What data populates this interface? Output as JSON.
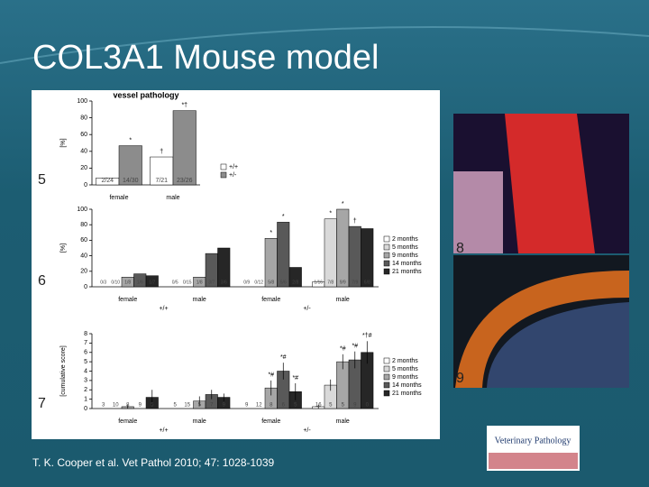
{
  "slide": {
    "title": "COL3A1 Mouse model",
    "citation": "T. K. Cooper et al. Vet Pathol 2010; 47: 1028-1039",
    "panel_labels": [
      "5",
      "6",
      "7",
      "8",
      "9"
    ],
    "logo": "Veterinary Pathology"
  },
  "chart_data": [
    {
      "type": "bar",
      "title": "vessel pathology",
      "y_label": "[%]",
      "categories": [
        "female",
        "male"
      ],
      "series": [
        {
          "name": "+/+",
          "color": "#ffffff",
          "values": [
            8.3,
            33.3
          ],
          "value_labels": [
            "2/24",
            "7/21"
          ]
        },
        {
          "name": "+/-",
          "color": "#8c8c8c",
          "values": [
            46.7,
            88.5
          ],
          "value_labels": [
            "14/30",
            "23/26"
          ]
        }
      ],
      "annotations": [
        {
          "text": "*",
          "category": 0,
          "series": 1
        },
        {
          "text": "†",
          "category": 1,
          "series": 0
        },
        {
          "text": "*†",
          "category": 1,
          "series": 1
        }
      ],
      "ylim": [
        0,
        100
      ],
      "yticks": [
        0,
        20,
        40,
        60,
        80,
        100
      ]
    },
    {
      "type": "bar",
      "y_label": "[%]",
      "categories": [
        "female",
        "male",
        "female",
        "male"
      ],
      "group_labels": [
        "+/+",
        "+/-"
      ],
      "series": [
        {
          "name": "2 months",
          "color": "#ffffff",
          "values": [
            0,
            0,
            0,
            6.25
          ],
          "value_labels": [
            "0/3",
            "0/5",
            "0/9",
            "1/16"
          ]
        },
        {
          "name": "5 months",
          "color": "#d9d9d9",
          "values": [
            0,
            0,
            0,
            87.5
          ],
          "value_labels": [
            "0/10",
            "0/15",
            "0/12",
            "7/8"
          ]
        },
        {
          "name": "9 months",
          "color": "#a6a6a6",
          "values": [
            12.5,
            12.5,
            62.5,
            100
          ],
          "value_labels": [
            "1/8",
            "1/8",
            "5/8",
            "9/9"
          ]
        },
        {
          "name": "14 months",
          "color": "#595959",
          "values": [
            16.7,
            42.9,
            83.3,
            77.8
          ],
          "value_labels": [
            "1/6",
            "3/7",
            "5/6",
            "7/9"
          ]
        },
        {
          "name": "21 months",
          "color": "#262626",
          "values": [
            14.3,
            50,
            25,
            75
          ],
          "value_labels": [
            "1/7",
            "3/6",
            "2/8",
            "6/8"
          ]
        }
      ],
      "annotations": [
        {
          "text": "*",
          "category": 2,
          "series": 2
        },
        {
          "text": "*",
          "category": 2,
          "series": 3
        },
        {
          "text": "*",
          "category": 3,
          "series": 1
        },
        {
          "text": "*",
          "category": 3,
          "series": 2
        },
        {
          "text": "†",
          "category": 3,
          "series": 3
        }
      ],
      "ylim": [
        0,
        100
      ],
      "yticks": [
        0,
        20,
        40,
        60,
        80,
        100
      ]
    },
    {
      "type": "bar",
      "y_label": "[cumulative score]",
      "categories": [
        "female",
        "male",
        "female",
        "male"
      ],
      "group_labels": [
        "+/+",
        "+/-"
      ],
      "series": [
        {
          "name": "2 months",
          "color": "#ffffff",
          "values": [
            0,
            0,
            0,
            0.2
          ],
          "errors": [
            0,
            0,
            0,
            0.2
          ],
          "n": [
            "3",
            "5",
            "9",
            "16"
          ]
        },
        {
          "name": "5 months",
          "color": "#d9d9d9",
          "values": [
            0,
            0,
            0,
            2.5
          ],
          "errors": [
            0,
            0,
            0,
            0.6
          ],
          "n": [
            "10",
            "15",
            "12",
            "5"
          ]
        },
        {
          "name": "9 months",
          "color": "#a6a6a6",
          "values": [
            0.2,
            0.8,
            2.2,
            5.0
          ],
          "errors": [
            0.2,
            0.5,
            0.8,
            0.8
          ],
          "n": [
            "8",
            "5",
            "8",
            "5"
          ]
        },
        {
          "name": "14 months",
          "color": "#595959",
          "values": [
            0,
            1.5,
            4.0,
            5.2
          ],
          "errors": [
            0,
            0.5,
            0.9,
            0.9
          ],
          "n": [
            "9",
            "7",
            "6",
            "9"
          ]
        },
        {
          "name": "21 months",
          "color": "#262626",
          "values": [
            1.2,
            1.2,
            1.8,
            6.0
          ],
          "errors": [
            0.8,
            0.4,
            0.9,
            1.2
          ],
          "n": [
            "5",
            "9",
            "5",
            "0"
          ]
        }
      ],
      "annotations": [
        {
          "text": "*#",
          "category": 2,
          "series": 2
        },
        {
          "text": "*#",
          "category": 2,
          "series": 3
        },
        {
          "text": "*#",
          "category": 2,
          "series": 4
        },
        {
          "text": "*#",
          "category": 3,
          "series": 2
        },
        {
          "text": "*#",
          "category": 3,
          "series": 3
        },
        {
          "text": "*†#",
          "category": 3,
          "series": 4
        }
      ],
      "ylim": [
        0,
        8
      ],
      "yticks": [
        0,
        1,
        2,
        3,
        4,
        5,
        6,
        7,
        8
      ]
    }
  ]
}
